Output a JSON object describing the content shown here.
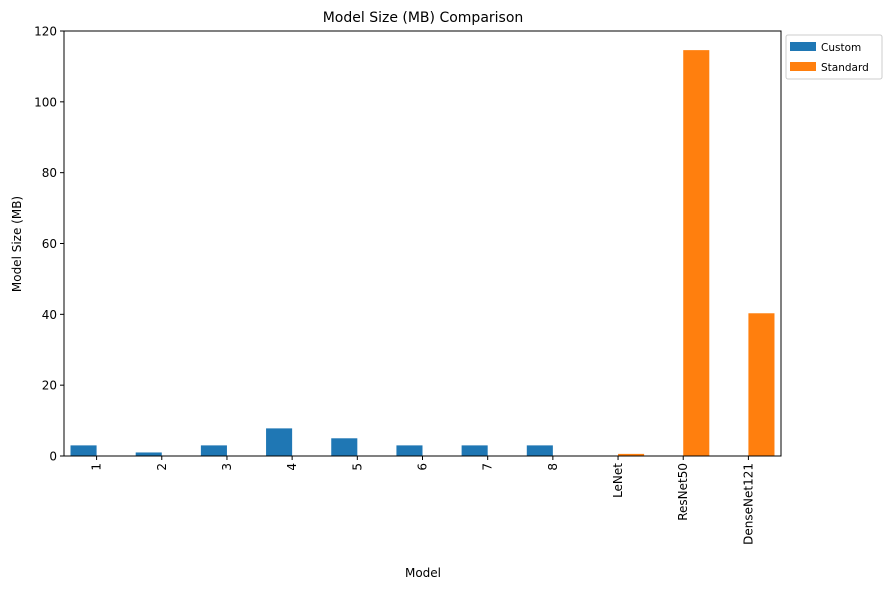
{
  "chart_data": {
    "type": "bar",
    "title": "Model Size (MB) Comparison",
    "xlabel": "Model",
    "ylabel": "Model Size (MB)",
    "categories": [
      "1",
      "2",
      "3",
      "4",
      "5",
      "6",
      "7",
      "8",
      "LeNet",
      "ResNet50",
      "DenseNet121"
    ],
    "series": [
      {
        "name": "Custom",
        "color": "#1f77b4",
        "values": [
          3.0,
          1.0,
          3.0,
          7.8,
          5.0,
          3.0,
          3.0,
          3.0,
          null,
          null,
          null
        ]
      },
      {
        "name": "Standard",
        "color": "#ff7f0e",
        "values": [
          null,
          null,
          null,
          null,
          null,
          null,
          null,
          null,
          0.6,
          114.6,
          40.3
        ]
      }
    ],
    "ylim": [
      0,
      120
    ],
    "yticks": [
      0,
      20,
      40,
      60,
      80,
      100,
      120
    ],
    "grid": false,
    "legend": "outside-top-right"
  }
}
